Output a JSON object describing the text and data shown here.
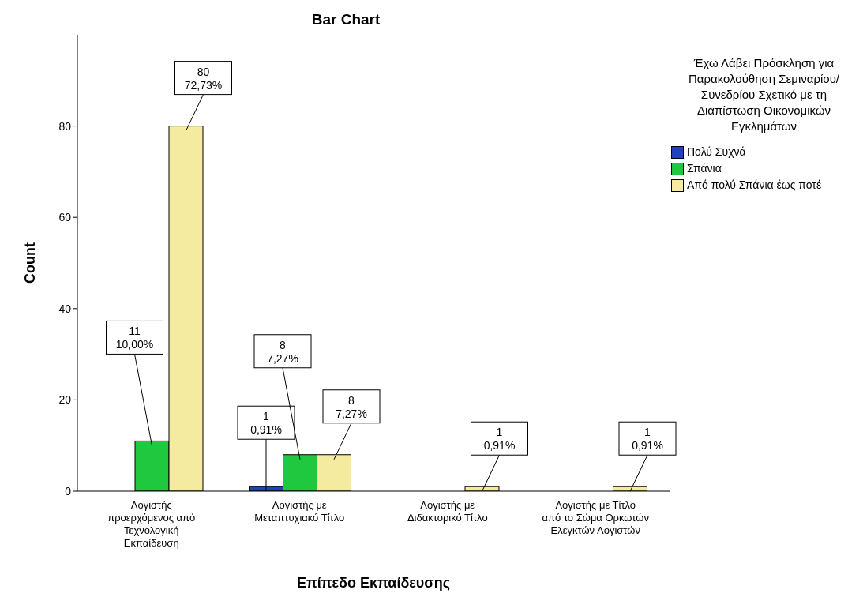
{
  "chart_data": {
    "type": "bar",
    "title": "Bar Chart",
    "xlabel": "Επίπεδο Εκπαίδευσης",
    "ylabel": "Count",
    "legend_title": "Έχω Λάβει Πρόσκληση για Παρακολούθηση Σεμιναρίου/Συνεδρίου Σχετικό με τη Διαπίστωση Οικονομικών Εγκλημάτων",
    "categories": [
      "Λογιστής προερχόμενος από Τεχνολογική Εκπαίδευση",
      "Λογιστής με Μεταπτυχιακό Τίτλο",
      "Λογιστής με Διδακτορικό Τίτλο",
      "Λογιστής με Τίτλο από το Σώμα Ορκωτών Ελεγκτών Λογιστών"
    ],
    "series": [
      {
        "name": "Πολύ Συχνά",
        "color": "#2040c0",
        "values": [
          0,
          1,
          0,
          0
        ],
        "value_labels": [
          null,
          "1\n0,91%",
          null,
          null
        ]
      },
      {
        "name": "Σπάνια",
        "color": "#20c840",
        "values": [
          11,
          8,
          0,
          0
        ],
        "value_labels": [
          "11\n10,00%",
          "8\n7,27%",
          null,
          null
        ]
      },
      {
        "name": "Από πολύ Σπάνια έως ποτέ",
        "color": "#f5eba0",
        "values": [
          80,
          8,
          1,
          1
        ],
        "value_labels": [
          "80\n72,73%",
          "8\n7,27%",
          "1\n0,91%",
          "1\n0,91%"
        ]
      }
    ],
    "ylim": [
      0,
      100
    ],
    "yticks": [
      0,
      20,
      40,
      60,
      80
    ],
    "grid": false,
    "legend": "right"
  }
}
